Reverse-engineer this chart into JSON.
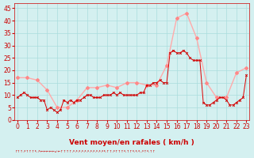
{
  "background_color": "#d4f0f0",
  "grid_color": "#aadddd",
  "line_color_mean": "#dd0000",
  "line_color_gust": "#ffaaaa",
  "marker_color_mean": "#cc0000",
  "marker_color_gust": "#ff8888",
  "xlabel": "Vent moyen/en rafales ( km/h )",
  "xlabel_color": "#cc0000",
  "tick_color": "#cc0000",
  "ylim": [
    0,
    47
  ],
  "yticks": [
    0,
    5,
    10,
    15,
    20,
    25,
    30,
    35,
    40,
    45
  ],
  "xticks": [
    0,
    1,
    2,
    3,
    4,
    5,
    6,
    7,
    8,
    9,
    10,
    11,
    12,
    13,
    14,
    15,
    16,
    17,
    18,
    19,
    20,
    21,
    22,
    23
  ],
  "mean_x": [
    0,
    0.33,
    0.67,
    1,
    1.33,
    1.67,
    2,
    2.33,
    2.67,
    3,
    3.33,
    3.67,
    4,
    4.33,
    4.67,
    5,
    5.33,
    5.67,
    6,
    6.33,
    6.67,
    7,
    7.33,
    7.67,
    8,
    8.33,
    8.67,
    9,
    9.33,
    9.67,
    10,
    10.33,
    10.67,
    11,
    11.33,
    11.67,
    12,
    12.33,
    12.67,
    13,
    13.33,
    13.67,
    14,
    14.33,
    14.67,
    15,
    15.33,
    15.67,
    16,
    16.33,
    16.67,
    17,
    17.33,
    17.67,
    18,
    18.33,
    18.67,
    19,
    19.33,
    19.67,
    20,
    20.33,
    20.67,
    21,
    21.33,
    21.67,
    22,
    22.33,
    22.67,
    23
  ],
  "mean_y": [
    9,
    10,
    11,
    10,
    9,
    9,
    9,
    8,
    8,
    4,
    5,
    4,
    3,
    4,
    8,
    7,
    8,
    7,
    8,
    8,
    9,
    10,
    10,
    9,
    9,
    9,
    10,
    10,
    10,
    11,
    10,
    11,
    10,
    10,
    10,
    10,
    10,
    11,
    11,
    14,
    14,
    15,
    15,
    16,
    15,
    15,
    27,
    28,
    27,
    27,
    28,
    27,
    25,
    24,
    24,
    24,
    7,
    6,
    6,
    7,
    8,
    9,
    9,
    8,
    6,
    6,
    7,
    8,
    9,
    18
  ],
  "gust_x": [
    0,
    1,
    2,
    3,
    4,
    5,
    6,
    7,
    8,
    9,
    10,
    11,
    12,
    13,
    14,
    15,
    16,
    17,
    18,
    19,
    20,
    21,
    22,
    23
  ],
  "gust_y": [
    17,
    17,
    16,
    12,
    5,
    5,
    8,
    13,
    13,
    14,
    13,
    15,
    15,
    14,
    14,
    22,
    41,
    43,
    33,
    15,
    9,
    9,
    19,
    21
  ]
}
